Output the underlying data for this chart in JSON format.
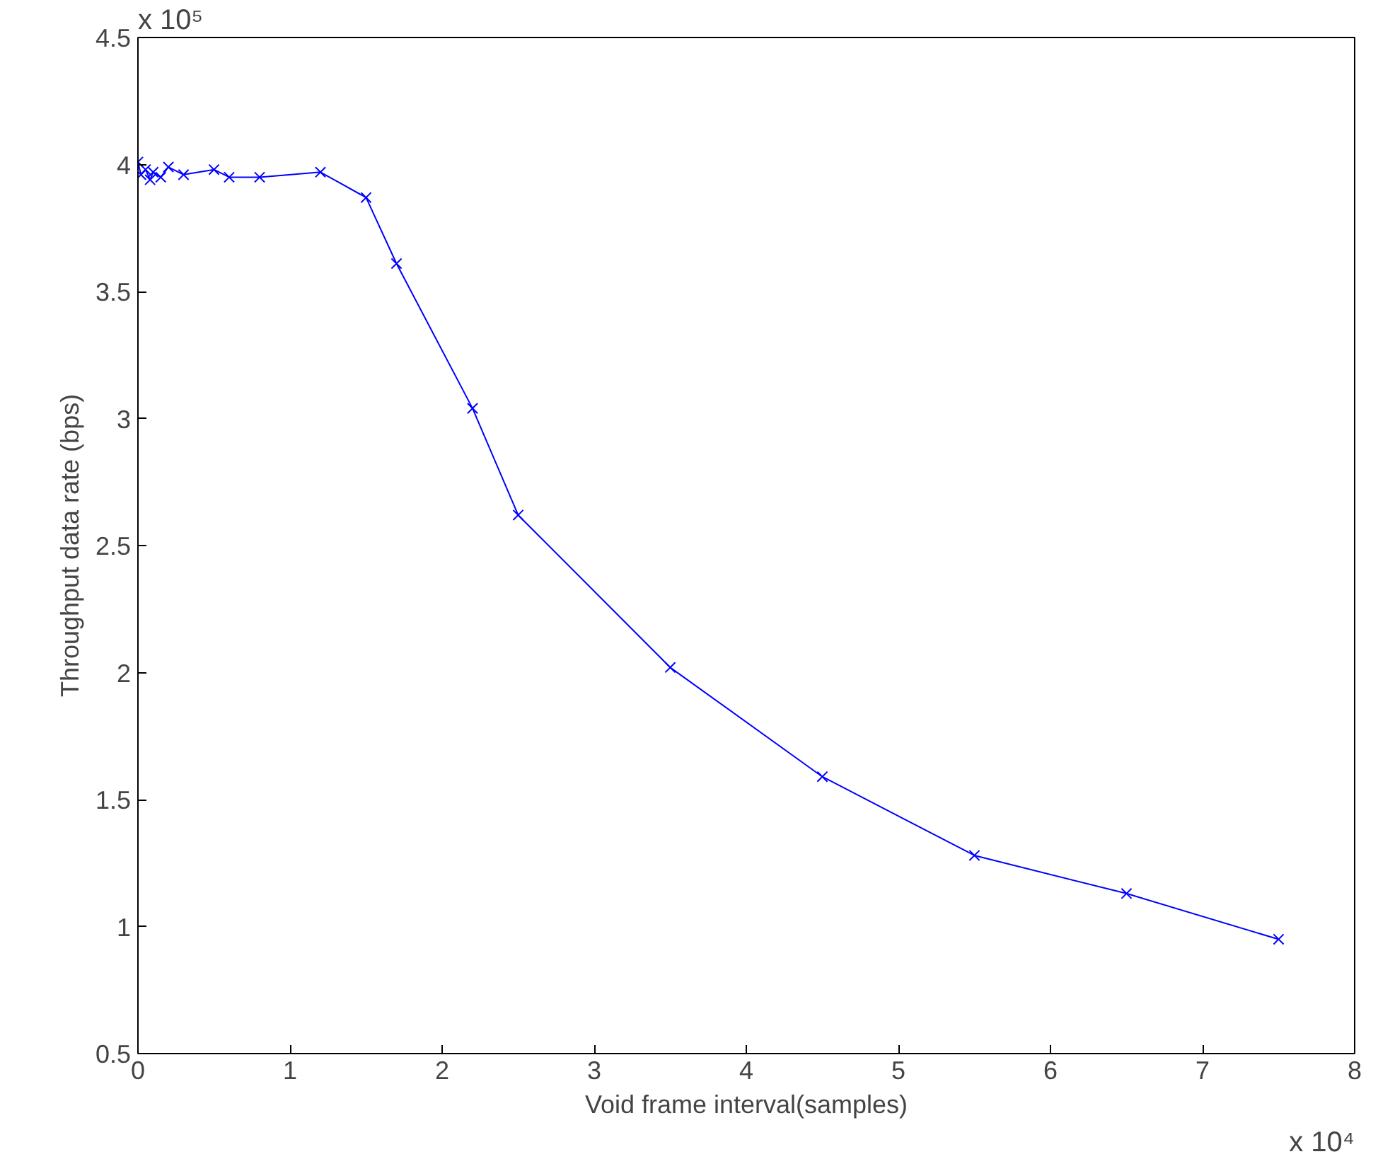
{
  "chart_data": {
    "type": "line",
    "xlabel": "Void frame interval(samples)",
    "ylabel": "Throughput data rate (bps)",
    "x": [
      0,
      0.02,
      0.05,
      0.08,
      0.1,
      0.15,
      0.2,
      0.3,
      0.5,
      0.6,
      0.8,
      1.2,
      1.5,
      1.7,
      2.2,
      2.5,
      3.5,
      4.5,
      5.5,
      6.5,
      7.5
    ],
    "series": [
      {
        "color": "#0000ff",
        "values": [
          4.01,
          3.96,
          3.98,
          3.94,
          3.97,
          3.95,
          3.99,
          3.96,
          3.98,
          3.95,
          3.95,
          3.97,
          3.87,
          3.61,
          3.04,
          2.62,
          2.02,
          1.59,
          1.28,
          1.13,
          0.95
        ]
      }
    ],
    "xlim": [
      0,
      8
    ],
    "xticks": [
      0,
      1,
      2,
      3,
      4,
      5,
      6,
      7,
      8
    ],
    "ylim": [
      0.5,
      4.5
    ],
    "yticks": [
      0.5,
      1,
      1.5,
      2,
      2.5,
      3,
      3.5,
      4,
      4.5
    ],
    "annotations": [
      "x 10⁵",
      "x 10⁴"
    ],
    "grid": false,
    "marker": "cross",
    "line_style": "solid"
  }
}
